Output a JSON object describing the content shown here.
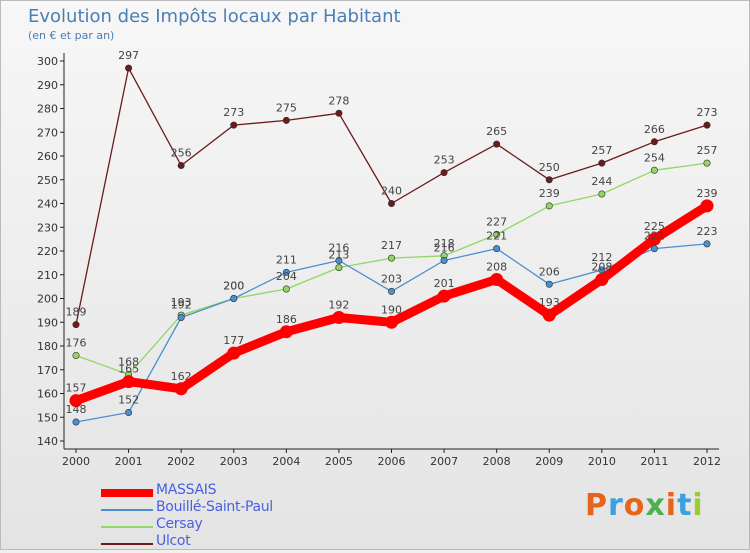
{
  "header": {
    "title": "Evolution des Impôts locaux par Habitant",
    "subtitle": "(en € et par an)"
  },
  "brand": {
    "text": "Proxiti",
    "letter_colors": [
      "#e8641b",
      "#3aa0e0",
      "#e8641b",
      "#4caf50",
      "#e8641b",
      "#3aa0e0",
      "#9acd32"
    ]
  },
  "chart_data": {
    "type": "line",
    "x": [
      "2000",
      "2001",
      "2002",
      "2003",
      "2004",
      "2005",
      "2006",
      "2007",
      "2008",
      "2009",
      "2010",
      "2011",
      "2012"
    ],
    "ylim": [
      140,
      300
    ],
    "yticks": [
      140,
      150,
      160,
      170,
      180,
      190,
      200,
      210,
      220,
      230,
      240,
      250,
      260,
      270,
      280,
      290,
      300
    ],
    "grid": false,
    "legend_position": "bottom-left",
    "series": [
      {
        "name": "MASSAIS",
        "color": "#ff0000",
        "values": [
          157,
          165,
          162,
          177,
          186,
          192,
          190,
          201,
          208,
          193,
          208,
          225,
          239
        ]
      },
      {
        "name": "Bouillé-Saint-Paul",
        "color": "#4a8fd0",
        "values": [
          148,
          152,
          192,
          200,
          211,
          216,
          203,
          216,
          221,
          206,
          212,
          221,
          223
        ]
      },
      {
        "name": "Cersay",
        "color": "#90d860",
        "values": [
          176,
          168,
          193,
          200,
          204,
          213,
          217,
          218,
          227,
          239,
          244,
          254,
          257
        ]
      },
      {
        "name": "Ulcot",
        "color": "#6e1a1a",
        "values": [
          189,
          297,
          256,
          273,
          275,
          278,
          240,
          253,
          265,
          250,
          257,
          266,
          273
        ]
      }
    ],
    "data_labels": [
      {
        "series": 0,
        "values": [
          "157",
          "165",
          "162",
          "177",
          "186",
          "192",
          "190",
          "201",
          "208",
          "193",
          "208",
          "225",
          "239"
        ]
      },
      {
        "series": 1,
        "values": [
          "148",
          "152",
          "192",
          "200",
          "211",
          "216",
          "203",
          "216",
          "221",
          "206",
          "212",
          "221",
          "223"
        ]
      },
      {
        "series": 2,
        "values": [
          "176",
          "168",
          "193",
          "200",
          "204",
          "213",
          "217",
          "218",
          "227",
          "239",
          "244",
          "254",
          "257"
        ]
      },
      {
        "series": 3,
        "values": [
          "189",
          "297",
          "256",
          "273",
          "275",
          "278",
          "240",
          "253",
          "265",
          "250",
          "257",
          "266",
          "273"
        ]
      }
    ]
  }
}
